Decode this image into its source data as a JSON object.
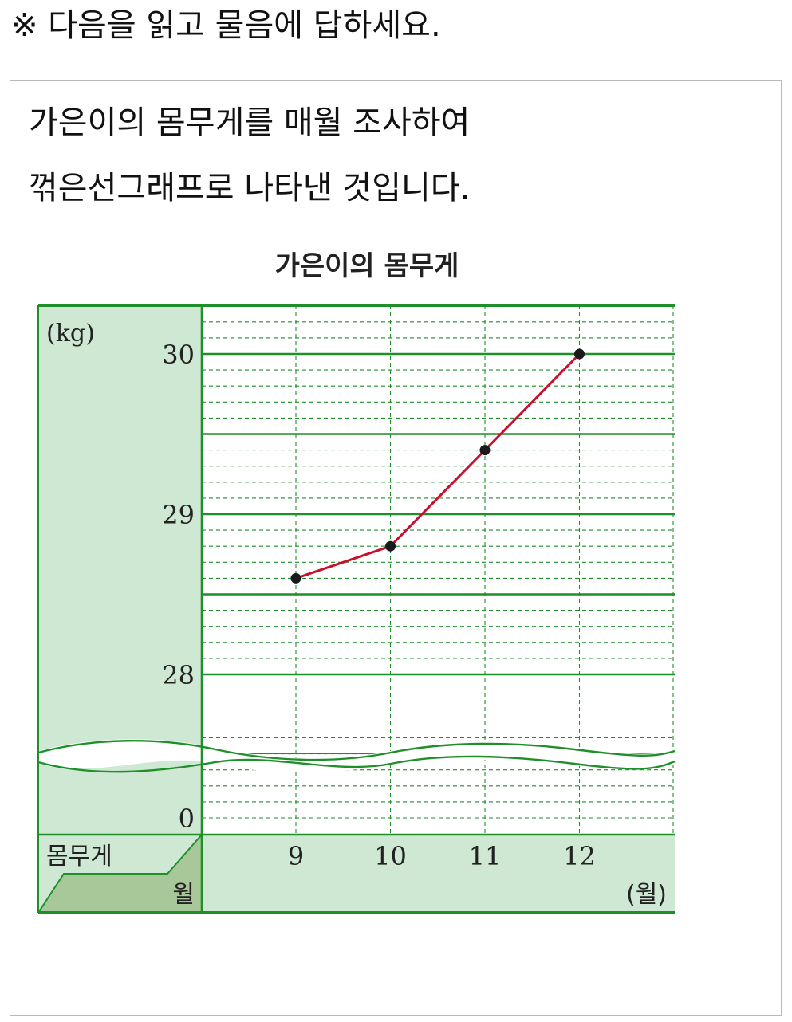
{
  "instruction": "※ 다음을 읽고 물음에 답하세요.",
  "intro": {
    "line1": "가은이의 몸무게를 매월 조사하여",
    "line2": "꺾은선그래프로 나타낸 것입니다."
  },
  "colors": {
    "grid_green": "#1f8f2a",
    "panel_fill": "#cfe8d4",
    "header_fill_dark": "#a8c89a",
    "line_red": "#c8102e",
    "point_black": "#1a1a1a"
  },
  "chart_data": {
    "type": "line",
    "title": "가은이의 몸무게",
    "unit_y": "(kg)",
    "unit_x": "(월)",
    "row_header": "몸무게",
    "col_header": "월",
    "x": [
      9,
      10,
      11,
      12
    ],
    "x_labels": [
      "9",
      "10",
      "11",
      "12"
    ],
    "values": [
      28.6,
      28.8,
      29.4,
      30
    ],
    "y_ticks": [
      {
        "value": 30,
        "label": "30"
      },
      {
        "value": 29,
        "label": "29"
      },
      {
        "value": 28,
        "label": "28"
      },
      {
        "value": 0,
        "label": "0"
      }
    ],
    "minor_step": 0.1,
    "major_step": 0.5,
    "ylim": [
      28,
      30.3
    ],
    "axis_break": "between 0 and 28",
    "grid": true
  }
}
